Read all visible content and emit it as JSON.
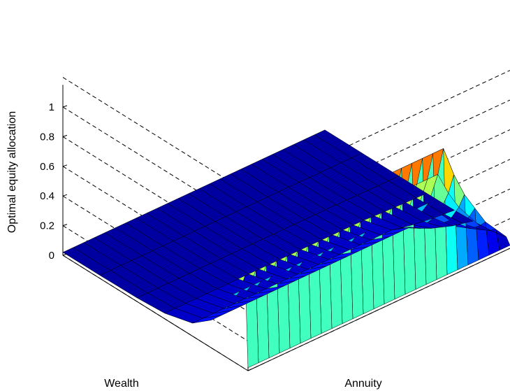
{
  "chart_data": {
    "type": "surface",
    "title": "",
    "xlabel": "Wealth",
    "ylabel": "Annuity",
    "zlabel": "Optimal equity allocation",
    "zlim": [
      0,
      1
    ],
    "z_ticks": [
      "0",
      "0.2",
      "0.4",
      "0.6",
      "0.8",
      "1"
    ],
    "grid": true,
    "colormap": [
      "#00008f",
      "#0000ff",
      "#0080ff",
      "#00ffff",
      "#80ff80",
      "#ffff00",
      "#ff8000",
      "#ff0000",
      "#800000"
    ],
    "wealth_grid": [
      0,
      0.02,
      0.05,
      0.1,
      0.2,
      0.3,
      0.45,
      0.6,
      0.8,
      1.0
    ],
    "annuity_grid": [
      0,
      0.04,
      0.08,
      0.12,
      0.16,
      0.2,
      0.24,
      0.28,
      0.32,
      0.36,
      0.4,
      0.44,
      0.48,
      0.52,
      0.56,
      0.6,
      0.64,
      0.68,
      0.72,
      0.76,
      0.8,
      0.84,
      0.88,
      0.92,
      0.96,
      1.0
    ],
    "allocation_at_wealth_edge": [
      1.0,
      1.0,
      1.0,
      1.0,
      1.0,
      1.0,
      1.0,
      1.0,
      1.0,
      1.0,
      1.0,
      1.0,
      1.0,
      1.0,
      1.0,
      1.0,
      1.0,
      1.0,
      1.0,
      1.0,
      0.75,
      0.55,
      0.4,
      0.25,
      0.15,
      0.05
    ]
  }
}
